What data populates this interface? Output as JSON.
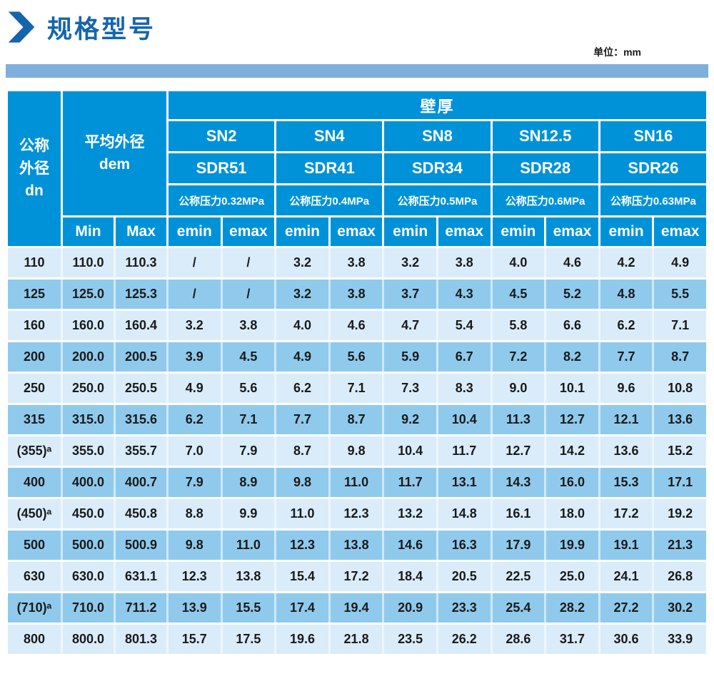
{
  "page": {
    "title": "规格型号",
    "unit_label": "单位：mm"
  },
  "colors": {
    "title_blue": "#1565ab",
    "bar_blue": "#7fafdc",
    "header_blue": "#0092d8",
    "row_light": "#daecf9",
    "row_dark": "#8fcaec"
  },
  "table": {
    "header": {
      "dn_label": "公称\n外径\ndn",
      "dem_label": "平均外径\ndem",
      "wall_thickness_label": "壁厚",
      "min": "Min",
      "max": "Max",
      "emin": "emin",
      "emax": "emax",
      "groups": [
        {
          "sn": "SN2",
          "sdr": "SDR51",
          "pressure": "公称压力0.32MPa"
        },
        {
          "sn": "SN4",
          "sdr": "SDR41",
          "pressure": "公称压力0.4MPa"
        },
        {
          "sn": "SN8",
          "sdr": "SDR34",
          "pressure": "公称压力0.5MPa"
        },
        {
          "sn": "SN12.5",
          "sdr": "SDR28",
          "pressure": "公称压力0.6MPa"
        },
        {
          "sn": "SN16",
          "sdr": "SDR26",
          "pressure": "公称压力0.63MPa"
        }
      ]
    },
    "rows": [
      {
        "dn": "110",
        "min": "110.0",
        "max": "110.3",
        "values": [
          "/",
          "/",
          "3.2",
          "3.8",
          "3.2",
          "3.8",
          "4.0",
          "4.6",
          "4.2",
          "4.9"
        ]
      },
      {
        "dn": "125",
        "min": "125.0",
        "max": "125.3",
        "values": [
          "/",
          "/",
          "3.2",
          "3.8",
          "3.7",
          "4.3",
          "4.5",
          "5.2",
          "4.8",
          "5.5"
        ]
      },
      {
        "dn": "160",
        "min": "160.0",
        "max": "160.4",
        "values": [
          "3.2",
          "3.8",
          "4.0",
          "4.6",
          "4.7",
          "5.4",
          "5.8",
          "6.6",
          "6.2",
          "7.1"
        ]
      },
      {
        "dn": "200",
        "min": "200.0",
        "max": "200.5",
        "values": [
          "3.9",
          "4.5",
          "4.9",
          "5.6",
          "5.9",
          "6.7",
          "7.2",
          "8.2",
          "7.7",
          "8.7"
        ]
      },
      {
        "dn": "250",
        "min": "250.0",
        "max": "250.5",
        "values": [
          "4.9",
          "5.6",
          "6.2",
          "7.1",
          "7.3",
          "8.3",
          "9.0",
          "10.1",
          "9.6",
          "10.8"
        ]
      },
      {
        "dn": "315",
        "min": "315.0",
        "max": "315.6",
        "values": [
          "6.2",
          "7.1",
          "7.7",
          "8.7",
          "9.2",
          "10.4",
          "11.3",
          "12.7",
          "12.1",
          "13.6"
        ]
      },
      {
        "dn": "(355)ᵃ",
        "min": "355.0",
        "max": "355.7",
        "values": [
          "7.0",
          "7.9",
          "8.7",
          "9.8",
          "10.4",
          "11.7",
          "12.7",
          "14.2",
          "13.6",
          "15.2"
        ]
      },
      {
        "dn": "400",
        "min": "400.0",
        "max": "400.7",
        "values": [
          "7.9",
          "8.9",
          "9.8",
          "11.0",
          "11.7",
          "13.1",
          "14.3",
          "16.0",
          "15.3",
          "17.1"
        ]
      },
      {
        "dn": "(450)ᵃ",
        "min": "450.0",
        "max": "450.8",
        "values": [
          "8.8",
          "9.9",
          "11.0",
          "12.3",
          "13.2",
          "14.8",
          "16.1",
          "18.0",
          "17.2",
          "19.2"
        ]
      },
      {
        "dn": "500",
        "min": "500.0",
        "max": "500.9",
        "values": [
          "9.8",
          "11.0",
          "12.3",
          "13.8",
          "14.6",
          "16.3",
          "17.9",
          "19.9",
          "19.1",
          "21.3"
        ]
      },
      {
        "dn": "630",
        "min": "630.0",
        "max": "631.1",
        "values": [
          "12.3",
          "13.8",
          "15.4",
          "17.2",
          "18.4",
          "20.5",
          "22.5",
          "25.0",
          "24.1",
          "26.8"
        ]
      },
      {
        "dn": "(710)ᵃ",
        "min": "710.0",
        "max": "711.2",
        "values": [
          "13.9",
          "15.5",
          "17.4",
          "19.4",
          "20.9",
          "23.3",
          "25.4",
          "28.2",
          "27.2",
          "30.2"
        ]
      },
      {
        "dn": "800",
        "min": "800.0",
        "max": "801.3",
        "values": [
          "15.7",
          "17.5",
          "19.6",
          "21.8",
          "23.5",
          "26.2",
          "28.6",
          "31.7",
          "30.6",
          "33.9"
        ]
      }
    ]
  }
}
